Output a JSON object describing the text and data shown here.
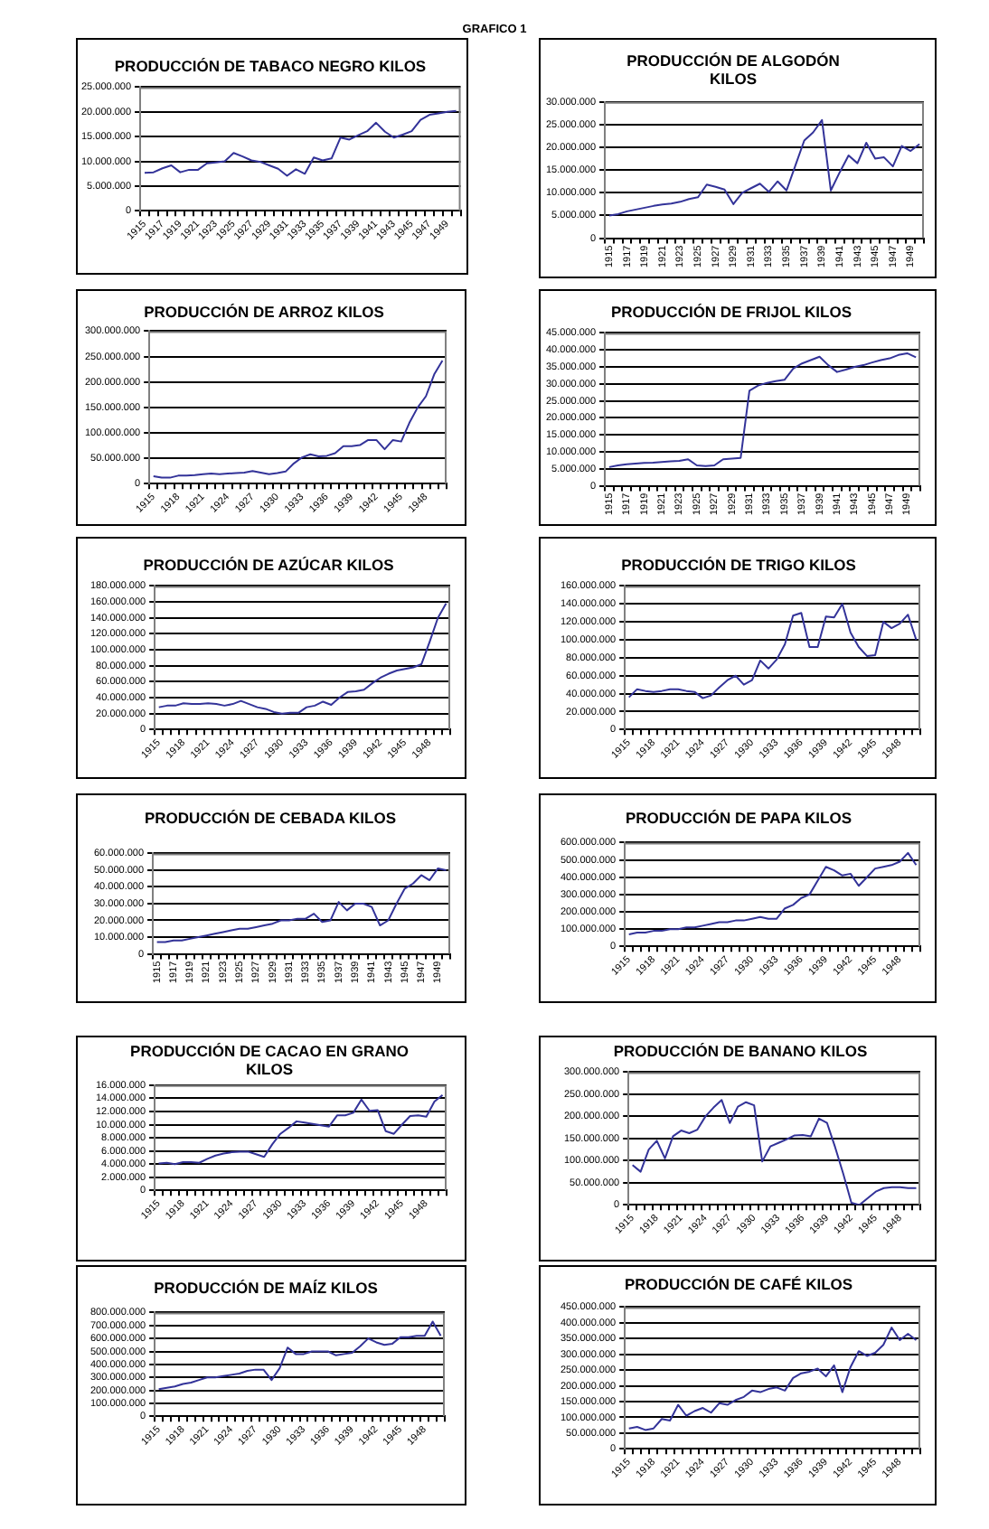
{
  "chart_data": [
    {
      "type": "line",
      "title": "PRODUCCIÓN DE TABACO NEGRO KILOS",
      "annotations": [
        "GRAFICO 1"
      ],
      "categories": [
        "1915",
        null,
        "1917",
        null,
        "1919",
        null,
        "1921",
        null,
        "1923",
        null,
        "1925",
        null,
        "1927",
        null,
        "1929",
        null,
        "1931",
        null,
        "1933",
        null,
        "1935",
        null,
        "1937",
        null,
        "1939",
        null,
        "1941",
        null,
        "1943",
        null,
        "1945",
        null,
        "1947",
        null,
        "1949",
        null
      ],
      "values": [
        7700000,
        7800000,
        8600000,
        9200000,
        7800000,
        8300000,
        8300000,
        9600000,
        9800000,
        10000000,
        11700000,
        11000000,
        10200000,
        9900000,
        9200000,
        8500000,
        7100000,
        8400000,
        7500000,
        10800000,
        10200000,
        10600000,
        14800000,
        14400000,
        15300000,
        16100000,
        17800000,
        16000000,
        14800000,
        15400000,
        16100000,
        18400000,
        19400000,
        19700000,
        20000000,
        20200000
      ],
      "color": "#333399",
      "ylim": [
        0,
        25000000
      ],
      "yticks": [
        {
          "value": 0,
          "label": "0"
        },
        {
          "value": 5000000,
          "label": "5.000.000"
        },
        {
          "value": 10000000,
          "label": "10.000.000"
        },
        {
          "value": 15000000,
          "label": "15.000.000"
        },
        {
          "value": 20000000,
          "label": "20.000.000"
        },
        {
          "value": 25000000,
          "label": "25.000.000"
        }
      ],
      "grid": "y"
    },
    {
      "type": "line",
      "title": "PRODUCCIÓN DE ALGODÓN KILOS",
      "categories": [
        "1915",
        null,
        "1917",
        null,
        "1919",
        null,
        "1921",
        null,
        "1923",
        null,
        "1925",
        null,
        "1927",
        null,
        "1929",
        null,
        "1931",
        null,
        "1933",
        null,
        "1935",
        null,
        "1937",
        null,
        "1939",
        null,
        "1941",
        null,
        "1943",
        null,
        "1945",
        null,
        "1947",
        null,
        "1949",
        null
      ],
      "values": [
        5000000,
        5300000,
        5900000,
        6300000,
        6700000,
        7100000,
        7400000,
        7600000,
        8000000,
        8600000,
        9000000,
        11800000,
        11300000,
        10700000,
        7500000,
        10000000,
        11000000,
        12000000,
        10200000,
        12500000,
        10500000,
        16000000,
        21500000,
        23300000,
        26000000,
        10500000,
        14500000,
        18200000,
        16500000,
        21000000,
        17500000,
        17800000,
        15800000,
        20300000,
        19200000,
        20700000
      ],
      "color": "#333399",
      "ylim": [
        0,
        30000000
      ],
      "yticks": [
        {
          "value": 0,
          "label": "0"
        },
        {
          "value": 5000000,
          "label": "5.000.000"
        },
        {
          "value": 10000000,
          "label": "10.000.000"
        },
        {
          "value": 15000000,
          "label": "15.000.000"
        },
        {
          "value": 20000000,
          "label": "20.000.000"
        },
        {
          "value": 25000000,
          "label": "25.000.000"
        },
        {
          "value": 30000000,
          "label": "30.000.000"
        }
      ],
      "grid": "y"
    },
    {
      "type": "line",
      "title": "PRODUCCIÓN DE ARROZ KILOS",
      "categories": [
        "1915",
        null,
        null,
        "1918",
        null,
        null,
        "1921",
        null,
        null,
        "1924",
        null,
        null,
        "1927",
        null,
        null,
        "1930",
        null,
        null,
        "1933",
        null,
        null,
        "1936",
        null,
        null,
        "1939",
        null,
        null,
        "1942",
        null,
        null,
        "1945",
        null,
        null,
        "1948",
        null,
        null
      ],
      "values": [
        15000000,
        12000000,
        12000000,
        16000000,
        16000000,
        17000000,
        19000000,
        20000000,
        19000000,
        20000000,
        21000000,
        22000000,
        25000000,
        22000000,
        19000000,
        21000000,
        24000000,
        40000000,
        52000000,
        58000000,
        54000000,
        55000000,
        60000000,
        74000000,
        74000000,
        76000000,
        86000000,
        86000000,
        68000000,
        86000000,
        83000000,
        120000000,
        150000000,
        172000000,
        215000000,
        242000000
      ],
      "color": "#333399",
      "ylim": [
        0,
        300000000
      ],
      "yticks": [
        {
          "value": 0,
          "label": "0"
        },
        {
          "value": 50000000,
          "label": "50.000.000"
        },
        {
          "value": 100000000,
          "label": "100.000.000"
        },
        {
          "value": 150000000,
          "label": "150.000.000"
        },
        {
          "value": 200000000,
          "label": "200.000.000"
        },
        {
          "value": 250000000,
          "label": "250.000.000"
        },
        {
          "value": 300000000,
          "label": "300.000.000"
        }
      ],
      "grid": "y"
    },
    {
      "type": "line",
      "title": "PRODUCCIÓN DE FRIJOL KILOS",
      "categories": [
        "1915",
        null,
        "1917",
        null,
        "1919",
        null,
        "1921",
        null,
        "1923",
        null,
        "1925",
        null,
        "1927",
        null,
        "1929",
        null,
        "1931",
        null,
        "1933",
        null,
        "1935",
        null,
        "1937",
        null,
        "1939",
        null,
        "1941",
        null,
        "1943",
        null,
        "1945",
        null,
        "1947",
        null,
        "1949",
        null
      ],
      "values": [
        5500000,
        6000000,
        6300000,
        6500000,
        6700000,
        6800000,
        7000000,
        7200000,
        7300000,
        7800000,
        6000000,
        5800000,
        6000000,
        7800000,
        8000000,
        8200000,
        28000000,
        29500000,
        30300000,
        30800000,
        31200000,
        34500000,
        36000000,
        37000000,
        38000000,
        35500000,
        33500000,
        34200000,
        35000000,
        35500000,
        36300000,
        37000000,
        37500000,
        38500000,
        39000000,
        37800000
      ],
      "color": "#333399",
      "ylim": [
        0,
        45000000
      ],
      "yticks": [
        {
          "value": 0,
          "label": "0"
        },
        {
          "value": 5000000,
          "label": "5.000.000"
        },
        {
          "value": 10000000,
          "label": "10.000.000"
        },
        {
          "value": 15000000,
          "label": "15.000.000"
        },
        {
          "value": 20000000,
          "label": "20.000.000"
        },
        {
          "value": 25000000,
          "label": "25.000.000"
        },
        {
          "value": 30000000,
          "label": "30.000.000"
        },
        {
          "value": 35000000,
          "label": "35.000.000"
        },
        {
          "value": 40000000,
          "label": "40.000.000"
        },
        {
          "value": 45000000,
          "label": "45.000.000"
        }
      ],
      "grid": "y"
    },
    {
      "type": "line",
      "title": "PRODUCCIÓN DE AZÚCAR KILOS",
      "categories": [
        "1915",
        null,
        null,
        "1918",
        null,
        null,
        "1921",
        null,
        null,
        "1924",
        null,
        null,
        "1927",
        null,
        null,
        "1930",
        null,
        null,
        "1933",
        null,
        null,
        "1936",
        null,
        null,
        "1939",
        null,
        null,
        "1942",
        null,
        null,
        "1945",
        null,
        null,
        "1948",
        null,
        null
      ],
      "values": [
        28000000,
        30000000,
        30000000,
        33000000,
        32000000,
        32000000,
        33000000,
        32000000,
        30000000,
        32000000,
        36000000,
        32000000,
        28000000,
        26000000,
        22000000,
        20000000,
        21000000,
        21000000,
        28000000,
        30000000,
        35000000,
        31000000,
        40000000,
        47000000,
        48000000,
        50000000,
        58000000,
        65000000,
        70000000,
        74000000,
        76000000,
        78000000,
        82000000,
        110000000,
        140000000,
        158000000
      ],
      "color": "#333399",
      "ylim": [
        0,
        180000000
      ],
      "yticks": [
        {
          "value": 0,
          "label": "0"
        },
        {
          "value": 20000000,
          "label": "20.000.000"
        },
        {
          "value": 40000000,
          "label": "40.000.000"
        },
        {
          "value": 60000000,
          "label": "60.000.000"
        },
        {
          "value": 80000000,
          "label": "80.000.000"
        },
        {
          "value": 100000000,
          "label": "100.000.000"
        },
        {
          "value": 120000000,
          "label": "120.000.000"
        },
        {
          "value": 140000000,
          "label": "140.000.000"
        },
        {
          "value": 160000000,
          "label": "160.000.000"
        },
        {
          "value": 180000000,
          "label": "180.000.000"
        }
      ],
      "grid": "y"
    },
    {
      "type": "line",
      "title": "PRODUCCIÓN DE TRIGO KILOS",
      "categories": [
        "1915",
        null,
        null,
        "1918",
        null,
        null,
        "1921",
        null,
        null,
        "1924",
        null,
        null,
        "1927",
        null,
        null,
        "1930",
        null,
        null,
        "1933",
        null,
        null,
        "1936",
        null,
        null,
        "1939",
        null,
        null,
        "1942",
        null,
        null,
        "1945",
        null,
        null,
        "1948",
        null,
        null
      ],
      "values": [
        36000000,
        45000000,
        43000000,
        42000000,
        43000000,
        45000000,
        45000000,
        43000000,
        42000000,
        35000000,
        38000000,
        47000000,
        55000000,
        60000000,
        50000000,
        55000000,
        77000000,
        68000000,
        78000000,
        95000000,
        127000000,
        130000000,
        92000000,
        92000000,
        126000000,
        125000000,
        140000000,
        108000000,
        92000000,
        82000000,
        83000000,
        120000000,
        113000000,
        118000000,
        128000000,
        100000000
      ],
      "color": "#333399",
      "ylim": [
        0,
        160000000
      ],
      "yticks": [
        {
          "value": 0,
          "label": "0"
        },
        {
          "value": 20000000,
          "label": "20.000.000"
        },
        {
          "value": 40000000,
          "label": "40.000.000"
        },
        {
          "value": 60000000,
          "label": "60.000.000"
        },
        {
          "value": 80000000,
          "label": "80.000.000"
        },
        {
          "value": 100000000,
          "label": "100.000.000"
        },
        {
          "value": 120000000,
          "label": "120.000.000"
        },
        {
          "value": 140000000,
          "label": "140.000.000"
        },
        {
          "value": 160000000,
          "label": "160.000.000"
        }
      ],
      "grid": "y"
    },
    {
      "type": "line",
      "title": "PRODUCCIÓN DE CEBADA KILOS",
      "categories": [
        "1915",
        null,
        "1917",
        null,
        "1919",
        null,
        "1921",
        null,
        "1923",
        null,
        "1925",
        null,
        "1927",
        null,
        "1929",
        null,
        "1931",
        null,
        "1933",
        null,
        "1935",
        null,
        "1937",
        null,
        "1939",
        null,
        "1941",
        null,
        "1943",
        null,
        "1945",
        null,
        "1947",
        null,
        "1949",
        null
      ],
      "values": [
        7000000,
        7000000,
        8000000,
        8000000,
        9000000,
        10000000,
        11000000,
        12000000,
        13000000,
        14000000,
        15000000,
        15000000,
        16000000,
        17000000,
        18000000,
        20000000,
        20000000,
        21000000,
        21000000,
        24000000,
        19000000,
        20000000,
        31000000,
        26000000,
        30000000,
        30000000,
        28000000,
        17000000,
        20000000,
        30000000,
        39000000,
        42000000,
        47000000,
        44000000,
        51000000,
        50000000
      ],
      "color": "#333399",
      "ylim": [
        0,
        60000000
      ],
      "yticks": [
        {
          "value": 0,
          "label": "0"
        },
        {
          "value": 10000000,
          "label": "10.000.000"
        },
        {
          "value": 20000000,
          "label": "20.000.000"
        },
        {
          "value": 30000000,
          "label": "30.000.000"
        },
        {
          "value": 40000000,
          "label": "40.000.000"
        },
        {
          "value": 50000000,
          "label": "50.000.000"
        },
        {
          "value": 60000000,
          "label": "60.000.000"
        }
      ],
      "grid": "y"
    },
    {
      "type": "line",
      "title": "PRODUCCIÓN DE PAPA KILOS",
      "categories": [
        "1915",
        null,
        null,
        "1918",
        null,
        null,
        "1921",
        null,
        null,
        "1924",
        null,
        null,
        "1927",
        null,
        null,
        "1930",
        null,
        null,
        "1933",
        null,
        null,
        "1936",
        null,
        null,
        "1939",
        null,
        null,
        "1942",
        null,
        null,
        "1945",
        null,
        null,
        "1948",
        null,
        null
      ],
      "values": [
        70000000,
        80000000,
        80000000,
        90000000,
        90000000,
        100000000,
        100000000,
        110000000,
        110000000,
        120000000,
        130000000,
        140000000,
        140000000,
        150000000,
        150000000,
        160000000,
        170000000,
        160000000,
        160000000,
        220000000,
        240000000,
        280000000,
        300000000,
        380000000,
        460000000,
        440000000,
        410000000,
        420000000,
        350000000,
        400000000,
        450000000,
        460000000,
        470000000,
        490000000,
        540000000,
        470000000
      ],
      "color": "#333399",
      "ylim": [
        0,
        600000000
      ],
      "yticks": [
        {
          "value": 0,
          "label": "0"
        },
        {
          "value": 100000000,
          "label": "100.000.000"
        },
        {
          "value": 200000000,
          "label": "200.000.000"
        },
        {
          "value": 300000000,
          "label": "300.000.000"
        },
        {
          "value": 400000000,
          "label": "400.000.000"
        },
        {
          "value": 500000000,
          "label": "500.000.000"
        },
        {
          "value": 600000000,
          "label": "600.000.000"
        }
      ],
      "grid": "y"
    },
    {
      "type": "line",
      "title": "PRODUCCIÓN DE CACAO EN GRANO KILOS",
      "categories": [
        "1915",
        null,
        null,
        "1918",
        null,
        null,
        "1921",
        null,
        null,
        "1924",
        null,
        null,
        "1927",
        null,
        null,
        "1930",
        null,
        null,
        "1933",
        null,
        null,
        "1936",
        null,
        null,
        "1939",
        null,
        null,
        "1942",
        null,
        null,
        "1945",
        null,
        null,
        "1948",
        null,
        null
      ],
      "values": [
        4100000,
        4200000,
        4000000,
        4300000,
        4300000,
        4200000,
        4800000,
        5300000,
        5600000,
        5800000,
        5900000,
        5900000,
        5500000,
        5100000,
        7000000,
        8600000,
        9500000,
        10500000,
        10300000,
        10100000,
        9900000,
        9700000,
        11400000,
        11400000,
        11800000,
        13800000,
        12100000,
        12200000,
        9000000,
        8600000,
        10000000,
        11300000,
        11400000,
        11200000,
        13500000,
        14500000
      ],
      "color": "#333399",
      "ylim": [
        0,
        16000000
      ],
      "yticks": [
        {
          "value": 0,
          "label": "0"
        },
        {
          "value": 2000000,
          "label": "2.000.000"
        },
        {
          "value": 4000000,
          "label": "4.000.000"
        },
        {
          "value": 6000000,
          "label": "6.000.000"
        },
        {
          "value": 8000000,
          "label": "8.000.000"
        },
        {
          "value": 10000000,
          "label": "10.000.000"
        },
        {
          "value": 12000000,
          "label": "12.000.000"
        },
        {
          "value": 14000000,
          "label": "14.000.000"
        },
        {
          "value": 16000000,
          "label": "16.000.000"
        }
      ],
      "grid": "y"
    },
    {
      "type": "line",
      "title": "PRODUCCIÓN DE BANANO KILOS",
      "categories": [
        "1915",
        null,
        null,
        "1918",
        null,
        null,
        "1921",
        null,
        null,
        "1924",
        null,
        null,
        "1927",
        null,
        null,
        "1930",
        null,
        null,
        "1933",
        null,
        null,
        "1936",
        null,
        null,
        "1939",
        null,
        null,
        "1942",
        null,
        null,
        "1945",
        null,
        null,
        "1948",
        null,
        null
      ],
      "values": [
        90000000,
        75000000,
        125000000,
        145000000,
        105000000,
        155000000,
        168000000,
        162000000,
        170000000,
        200000000,
        220000000,
        237000000,
        185000000,
        222000000,
        232000000,
        225000000,
        98000000,
        132000000,
        140000000,
        148000000,
        157000000,
        158000000,
        155000000,
        195000000,
        185000000,
        130000000,
        70000000,
        5000000,
        0,
        15000000,
        30000000,
        38000000,
        40000000,
        40000000,
        38000000,
        38000000
      ],
      "color": "#333399",
      "ylim": [
        0,
        300000000
      ],
      "yticks": [
        {
          "value": 0,
          "label": "0"
        },
        {
          "value": 50000000,
          "label": "50.000.000"
        },
        {
          "value": 100000000,
          "label": "100.000.000"
        },
        {
          "value": 150000000,
          "label": "150.000.000"
        },
        {
          "value": 200000000,
          "label": "200.000.000"
        },
        {
          "value": 250000000,
          "label": "250.000.000"
        },
        {
          "value": 300000000,
          "label": "300.000.000"
        }
      ],
      "grid": "y"
    },
    {
      "type": "line",
      "title": "PRODUCCIÓN DE MAÍZ KILOS",
      "categories": [
        "1915",
        null,
        null,
        "1918",
        null,
        null,
        "1921",
        null,
        null,
        "1924",
        null,
        null,
        "1927",
        null,
        null,
        "1930",
        null,
        null,
        "1933",
        null,
        null,
        "1936",
        null,
        null,
        "1939",
        null,
        null,
        "1942",
        null,
        null,
        "1945",
        null,
        null,
        "1948",
        null,
        null
      ],
      "values": [
        210000000,
        220000000,
        230000000,
        250000000,
        260000000,
        280000000,
        300000000,
        300000000,
        310000000,
        320000000,
        330000000,
        350000000,
        360000000,
        360000000,
        280000000,
        370000000,
        530000000,
        480000000,
        480000000,
        500000000,
        500000000,
        500000000,
        470000000,
        480000000,
        490000000,
        540000000,
        600000000,
        570000000,
        550000000,
        560000000,
        610000000,
        610000000,
        620000000,
        620000000,
        730000000,
        620000000
      ],
      "color": "#333399",
      "ylim": [
        0,
        800000000
      ],
      "yticks": [
        {
          "value": 0,
          "label": "0"
        },
        {
          "value": 100000000,
          "label": "100.000.000"
        },
        {
          "value": 200000000,
          "label": "200.000.000"
        },
        {
          "value": 300000000,
          "label": "300.000.000"
        },
        {
          "value": 400000000,
          "label": "400.000.000"
        },
        {
          "value": 500000000,
          "label": "500.000.000"
        },
        {
          "value": 600000000,
          "label": "600.000.000"
        },
        {
          "value": 700000000,
          "label": "700.000.000"
        },
        {
          "value": 800000000,
          "label": "800.000.000"
        }
      ],
      "grid": "y"
    },
    {
      "type": "line",
      "title": "PRODUCCIÓN DE CAFÉ KILOS",
      "categories": [
        "1915",
        null,
        null,
        "1918",
        null,
        null,
        "1921",
        null,
        null,
        "1924",
        null,
        null,
        "1927",
        null,
        null,
        "1930",
        null,
        null,
        "1933",
        null,
        null,
        "1936",
        null,
        null,
        "1939",
        null,
        null,
        "1942",
        null,
        null,
        "1945",
        null,
        null,
        "1948",
        null,
        null
      ],
      "values": [
        65000000,
        70000000,
        60000000,
        65000000,
        95000000,
        90000000,
        140000000,
        105000000,
        120000000,
        130000000,
        115000000,
        145000000,
        140000000,
        155000000,
        165000000,
        185000000,
        180000000,
        190000000,
        195000000,
        185000000,
        225000000,
        240000000,
        245000000,
        255000000,
        230000000,
        265000000,
        180000000,
        260000000,
        310000000,
        295000000,
        305000000,
        330000000,
        385000000,
        345000000,
        365000000,
        345000000
      ],
      "color": "#333399",
      "ylim": [
        0,
        450000000
      ],
      "yticks": [
        {
          "value": 0,
          "label": "0"
        },
        {
          "value": 50000000,
          "label": "50.000.000"
        },
        {
          "value": 100000000,
          "label": "100.000.000"
        },
        {
          "value": 150000000,
          "label": "150.000.000"
        },
        {
          "value": 200000000,
          "label": "200.000.000"
        },
        {
          "value": 250000000,
          "label": "250.000.000"
        },
        {
          "value": 300000000,
          "label": "300.000.000"
        },
        {
          "value": 350000000,
          "label": "350.000.000"
        },
        {
          "value": 400000000,
          "label": "400.000.000"
        },
        {
          "value": 450000000,
          "label": "450.000.000"
        }
      ],
      "grid": "y"
    }
  ]
}
